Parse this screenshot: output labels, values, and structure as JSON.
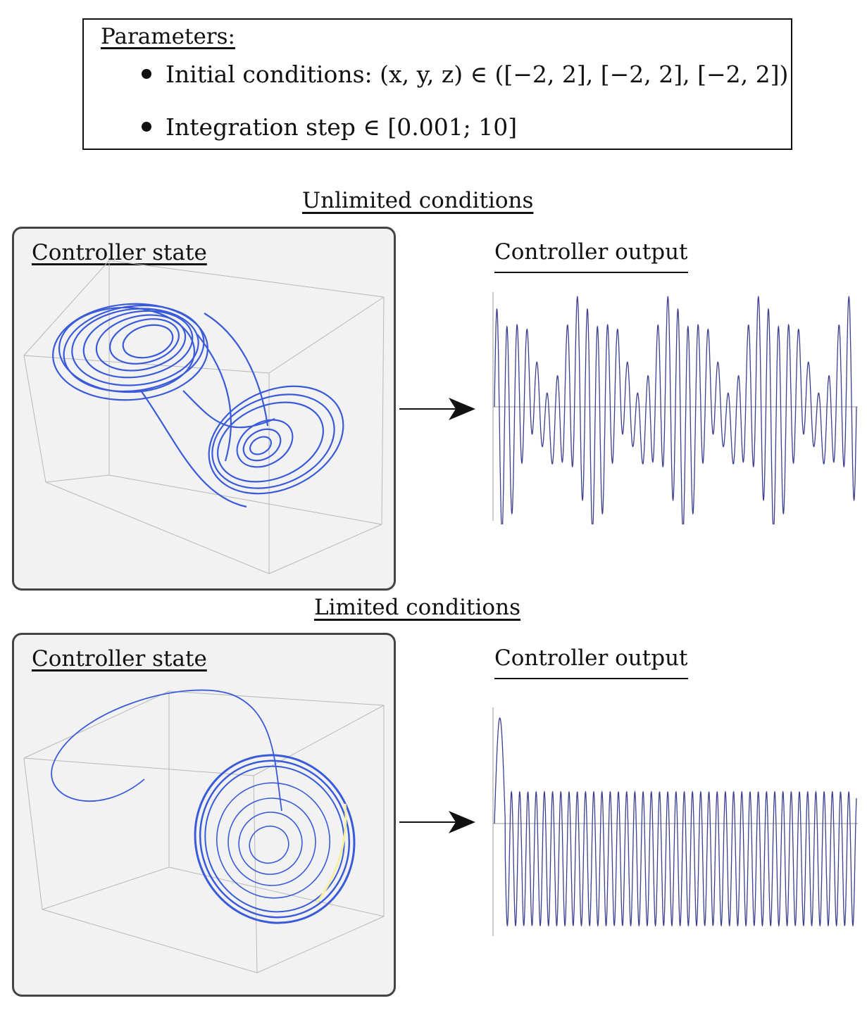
{
  "parameters": {
    "title": "Parameters:",
    "items": [
      "Initial conditions: (x, y, z) ∈ ([−2, 2], [−2, 2], [−2, 2])",
      "Integration step ∈ [0.001; 10]"
    ]
  },
  "sections": [
    {
      "title": "Unlimited conditions",
      "state_title": "Controller state",
      "output_title": "Controller output"
    },
    {
      "title": "Limited conditions",
      "state_title": "Controller state",
      "output_title": "Controller output"
    }
  ],
  "colors": {
    "trajectory": "#3a5bd9",
    "signal": "#3b3f8f",
    "panel_bg": "#f2f2f2",
    "highlight": "#f4f0a0"
  }
}
